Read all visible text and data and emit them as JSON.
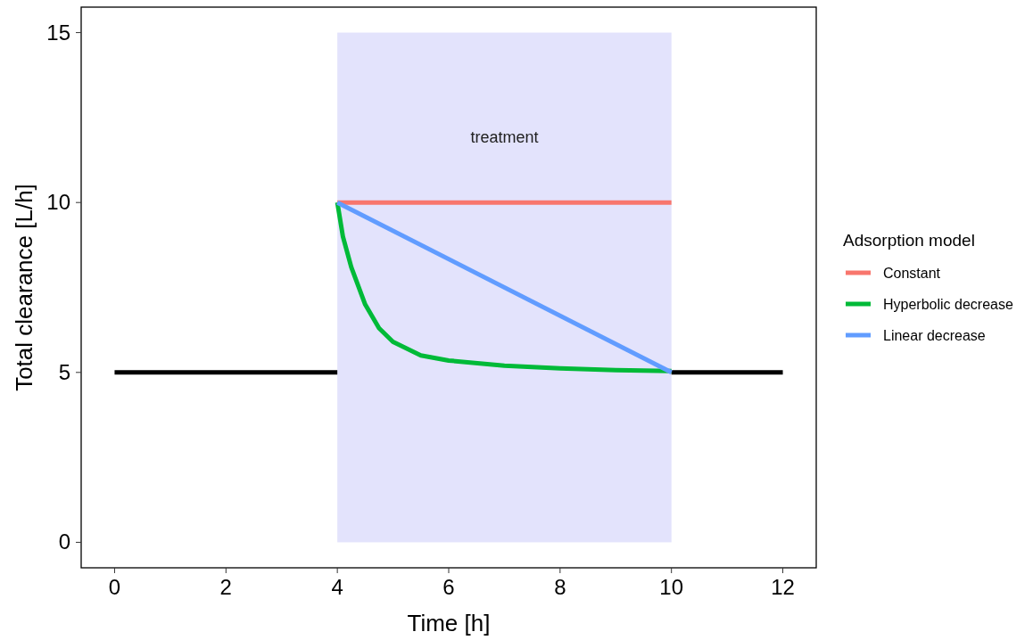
{
  "chart_data": {
    "type": "line",
    "xlabel": "Time [h]",
    "ylabel": "Total clearance [L/h]",
    "legend_title": "Adsorption model",
    "legend": "right",
    "grid": false,
    "xlim": [
      -0.6,
      12.6
    ],
    "ylim": [
      -0.75,
      15.75
    ],
    "xticks": [
      0,
      2,
      4,
      6,
      8,
      10,
      12
    ],
    "yticks": [
      0,
      5,
      10,
      15
    ],
    "bands": [
      {
        "axis": "x",
        "from": 4,
        "to": 10,
        "color": "#e3e3fc"
      }
    ],
    "annotations": [
      "treatment"
    ],
    "series": [
      {
        "color": "#000000",
        "x": [
          0,
          4,
          7,
          10,
          12
        ],
        "values": [
          5,
          5,
          null,
          5,
          5
        ]
      },
      {
        "name": "Constant",
        "color": "#f8766d",
        "x": [
          4,
          10
        ],
        "values": [
          10,
          10
        ]
      },
      {
        "name": "Hyperbolic decrease",
        "color": "#00ba38",
        "x": [
          4,
          4.1,
          4.25,
          4.5,
          4.75,
          5,
          5.5,
          6,
          7,
          8,
          9,
          10
        ],
        "values": [
          10,
          9.0,
          8.1,
          7.0,
          6.3,
          5.9,
          5.5,
          5.35,
          5.2,
          5.12,
          5.07,
          5.04
        ]
      },
      {
        "name": "Linear decrease",
        "color": "#619cff",
        "x": [
          4,
          10
        ],
        "values": [
          10,
          5
        ]
      }
    ]
  }
}
